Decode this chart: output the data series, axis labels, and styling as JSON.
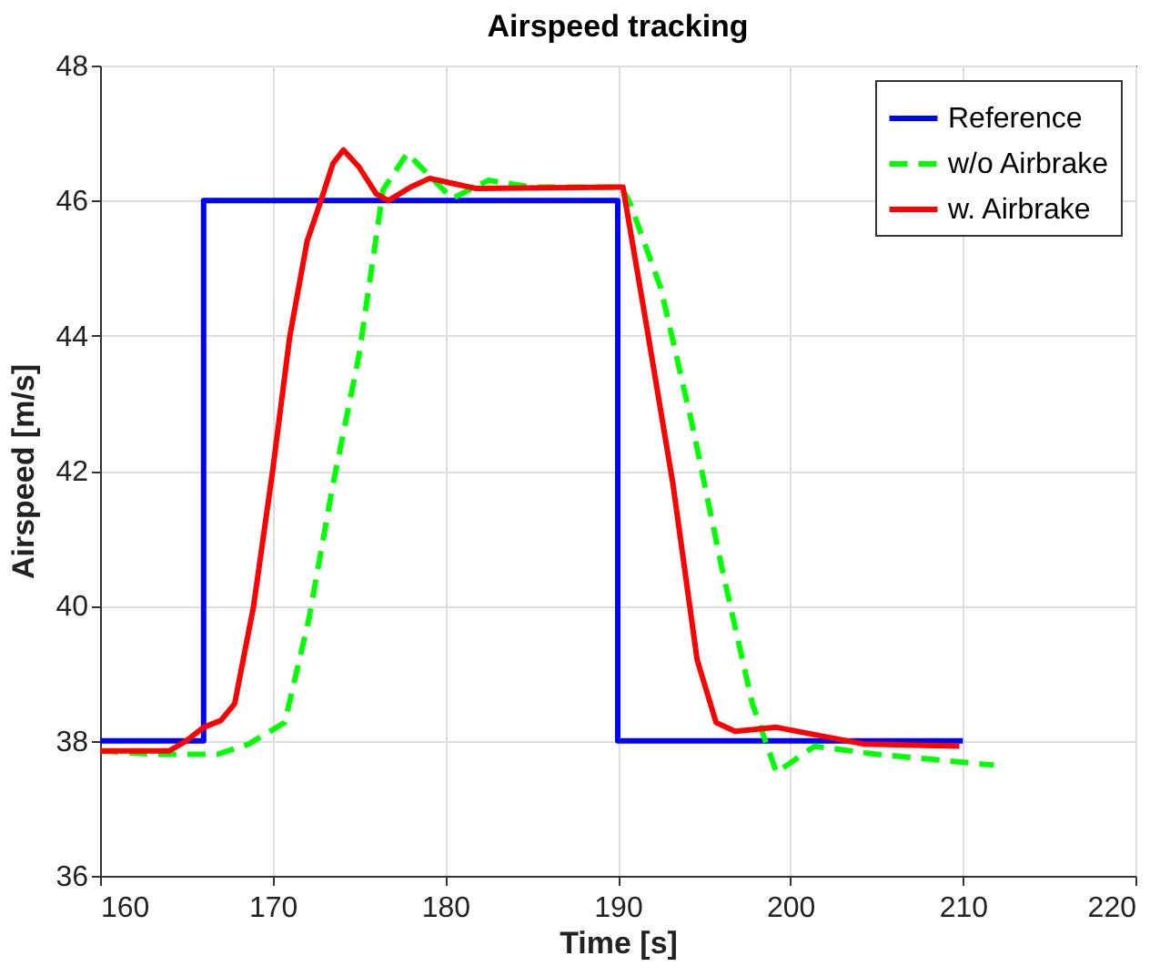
{
  "chart_data": {
    "type": "line",
    "title": "Airspeed tracking",
    "xlabel": "Time [s]",
    "ylabel": "Airspeed [m/s]",
    "xlim": [
      160,
      220
    ],
    "xticks": [
      160,
      170,
      180,
      190,
      200,
      210,
      220
    ],
    "ylim": [
      36,
      48
    ],
    "yticks": [
      36,
      38,
      40,
      42,
      44,
      46,
      48
    ],
    "grid": true,
    "legend": "top right",
    "series": [
      {
        "name": "Reference",
        "color": "#0000ff",
        "line_style": "solid",
        "x": [
          160,
          166,
          166,
          190,
          190,
          210
        ],
        "values": [
          38,
          38,
          46,
          46,
          38,
          38
        ]
      },
      {
        "name": "w/o Airbrake",
        "color": "#00ff00",
        "line_style": "dashed",
        "x": [
          160,
          163.2,
          166.8,
          168.6,
          170.7,
          172.1,
          173.5,
          175,
          176.4,
          177.8,
          180.4,
          182.5,
          185,
          190.2,
          190.7,
          192.5,
          194.3,
          196,
          197.8,
          199.2,
          201.4,
          205,
          211.8
        ],
        "values": [
          37.85,
          37.8,
          37.8,
          37.95,
          38.27,
          39.8,
          41.8,
          43.7,
          46.16,
          46.7,
          46.03,
          46.3,
          46.2,
          46.2,
          45.97,
          44.7,
          42.7,
          40.6,
          38.55,
          37.53,
          37.92,
          37.8,
          37.64
        ]
      },
      {
        "name": "w. Airbrake",
        "color": "#ff0000",
        "line_style": "solid",
        "x": [
          160,
          164,
          165,
          166,
          167,
          167.8,
          168.9,
          170,
          171,
          172,
          172.8,
          173.5,
          174.1,
          175,
          176,
          176.7,
          178,
          179.1,
          180.5,
          181.8,
          190.1,
          190.3,
          191.7,
          193.2,
          194.6,
          195.7,
          196.8,
          199.2,
          204.3,
          209.8
        ],
        "values": [
          37.85,
          37.85,
          38,
          38.2,
          38.3,
          38.55,
          40,
          42,
          44,
          45.4,
          46,
          46.55,
          46.75,
          46.5,
          46.1,
          46,
          46.2,
          46.33,
          46.25,
          46.18,
          46.2,
          46.2,
          44.1,
          41.8,
          39.2,
          38.27,
          38.14,
          38.2,
          37.95,
          37.92
        ]
      }
    ]
  }
}
